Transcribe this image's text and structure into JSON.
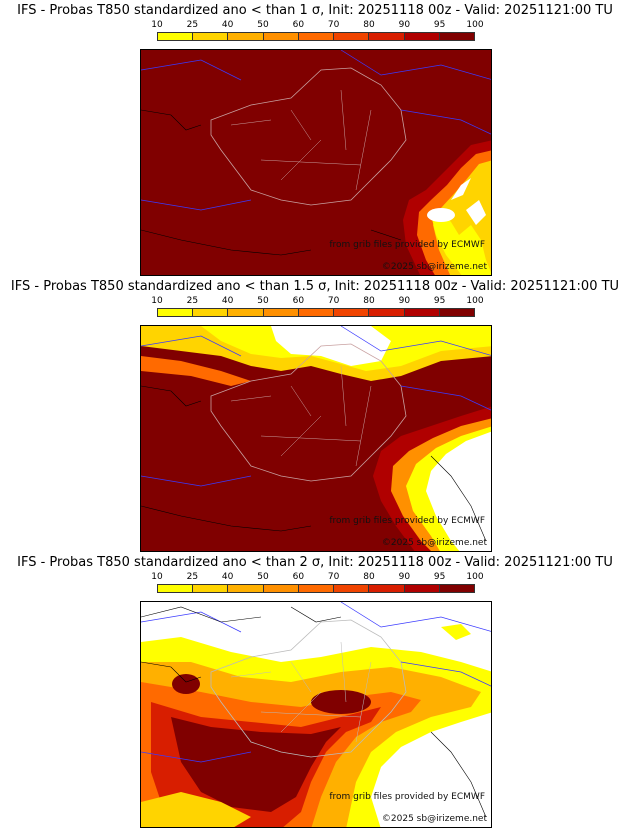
{
  "legend": {
    "ticks": [
      "10",
      "25",
      "40",
      "50",
      "60",
      "70",
      "80",
      "90",
      "95",
      "100"
    ],
    "colors": [
      "#ffff00",
      "#ffd400",
      "#ffb000",
      "#ff9000",
      "#ff6a00",
      "#f04400",
      "#d81e00",
      "#b00000",
      "#800000"
    ]
  },
  "credits": {
    "source": "from grib files provided by ECMWF",
    "copyright": "©2025 sb@irizeme.net"
  },
  "maps": [
    {
      "title": "IFS - Probas T850  standardized ano < than 1 σ, Init: 20251118 00z - Valid: 20251121:00 TU",
      "threshold": "1 σ"
    },
    {
      "title": "IFS - Probas T850  standardized ano < than 1.5 σ, Init: 20251118 00z - Valid: 20251121:00 TU",
      "threshold": "1.5 σ"
    },
    {
      "title": "IFS - Probas T850  standardized ano < than 2 σ, Init: 20251118 00z - Valid: 20251121:00 TU",
      "threshold": "2 σ"
    }
  ]
}
